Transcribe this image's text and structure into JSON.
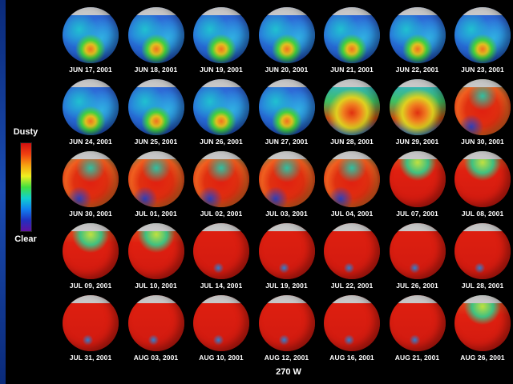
{
  "legend": {
    "top": "Dusty",
    "bottom": "Clear"
  },
  "footer": "270 W",
  "frames": [
    {
      "date": "JUN 17, 2001",
      "dust": 0.15
    },
    {
      "date": "JUN 18, 2001",
      "dust": 0.15
    },
    {
      "date": "JUN 19, 2001",
      "dust": 0.15
    },
    {
      "date": "JUN 20, 2001",
      "dust": 0.15
    },
    {
      "date": "JUN 21, 2001",
      "dust": 0.12
    },
    {
      "date": "JUN 22, 2001",
      "dust": 0.12
    },
    {
      "date": "JUN 23, 2001",
      "dust": 0.12
    },
    {
      "date": "JUN 24, 2001",
      "dust": 0.15
    },
    {
      "date": "JUN 25, 2001",
      "dust": 0.2
    },
    {
      "date": "JUN 26, 2001",
      "dust": 0.22
    },
    {
      "date": "JUN 27, 2001",
      "dust": 0.3
    },
    {
      "date": "JUN 28, 2001",
      "dust": 0.4
    },
    {
      "date": "JUN 29, 2001",
      "dust": 0.55
    },
    {
      "date": "JUN 30, 2001",
      "dust": 0.7
    },
    {
      "date": "JUN 30, 2001",
      "dust": 0.65
    },
    {
      "date": "JUL 01, 2001",
      "dust": 0.72
    },
    {
      "date": "JUL 02, 2001",
      "dust": 0.7
    },
    {
      "date": "JUL 03, 2001",
      "dust": 0.72
    },
    {
      "date": "JUL 04, 2001",
      "dust": 0.78
    },
    {
      "date": "JUL 07, 2001",
      "dust": 0.85
    },
    {
      "date": "JUL 08, 2001",
      "dust": 0.88
    },
    {
      "date": "JUL 09, 2001",
      "dust": 0.85
    },
    {
      "date": "JUL 10, 2001",
      "dust": 0.88
    },
    {
      "date": "JUL 14, 2001",
      "dust": 0.95
    },
    {
      "date": "JUL 19, 2001",
      "dust": 0.95
    },
    {
      "date": "JUL 22, 2001",
      "dust": 0.97
    },
    {
      "date": "JUL 26, 2001",
      "dust": 0.97
    },
    {
      "date": "JUL 28, 2001",
      "dust": 0.97
    },
    {
      "date": "JUL 31, 2001",
      "dust": 0.98
    },
    {
      "date": "AUG 03, 2001",
      "dust": 0.98
    },
    {
      "date": "AUG 10, 2001",
      "dust": 0.98
    },
    {
      "date": "AUG 12, 2001",
      "dust": 0.98
    },
    {
      "date": "AUG 16, 2001",
      "dust": 0.98
    },
    {
      "date": "AUG 21, 2001",
      "dust": 0.98
    },
    {
      "date": "AUG 26, 2001",
      "dust": 0.85
    }
  ]
}
